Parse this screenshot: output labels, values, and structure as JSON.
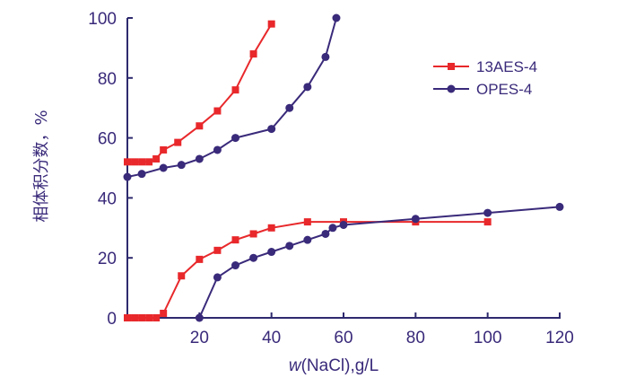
{
  "chart_data": {
    "type": "line",
    "title": "",
    "xlabel": {
      "italic": "w",
      "rest": "(NaCl),g/L"
    },
    "ylabel": "相体积分数，%",
    "xlim": [
      0,
      120
    ],
    "ylim": [
      0,
      100
    ],
    "xticks": [
      "20",
      "40",
      "60",
      "80",
      "100",
      "120"
    ],
    "yticks": [
      "0",
      "20",
      "40",
      "60",
      "80",
      "100"
    ],
    "grid": false,
    "legend_position": "top-right",
    "colors": {
      "axis": "#2e2a6e",
      "text": "#3a2a7a",
      "aes": "#e8282b",
      "opes": "#3a2a7a"
    },
    "series": [
      {
        "name": "13AES-4",
        "marker": "square",
        "segments": [
          {
            "x": [
              0,
              2,
              4,
              6,
              8,
              10,
              14,
              20,
              25,
              30,
              35,
              40
            ],
            "y": [
              52,
              52,
              52,
              52,
              53,
              56,
              58.5,
              64,
              69,
              76,
              88,
              98
            ]
          },
          {
            "x": [
              0,
              2,
              4,
              6,
              8,
              10,
              15,
              20,
              25,
              30,
              35,
              40,
              50,
              60,
              80,
              100
            ],
            "y": [
              0,
              0,
              0,
              0,
              0,
              1.5,
              14,
              19.5,
              22.5,
              26,
              28,
              30,
              32,
              32,
              32,
              32
            ]
          }
        ]
      },
      {
        "name": "OPES-4",
        "marker": "circle",
        "segments": [
          {
            "x": [
              0,
              4,
              10,
              15,
              20,
              25,
              30,
              40,
              45,
              50,
              55,
              58
            ],
            "y": [
              47,
              48,
              50,
              51,
              53,
              56,
              60,
              63,
              70,
              77,
              87,
              100
            ]
          },
          {
            "x": [
              20,
              25,
              30,
              35,
              40,
              45,
              50,
              55,
              57,
              60,
              80,
              100,
              120
            ],
            "y": [
              0,
              13.5,
              17.5,
              20,
              22,
              24,
              26,
              28,
              30,
              31,
              33,
              35,
              37
            ]
          }
        ]
      }
    ]
  }
}
